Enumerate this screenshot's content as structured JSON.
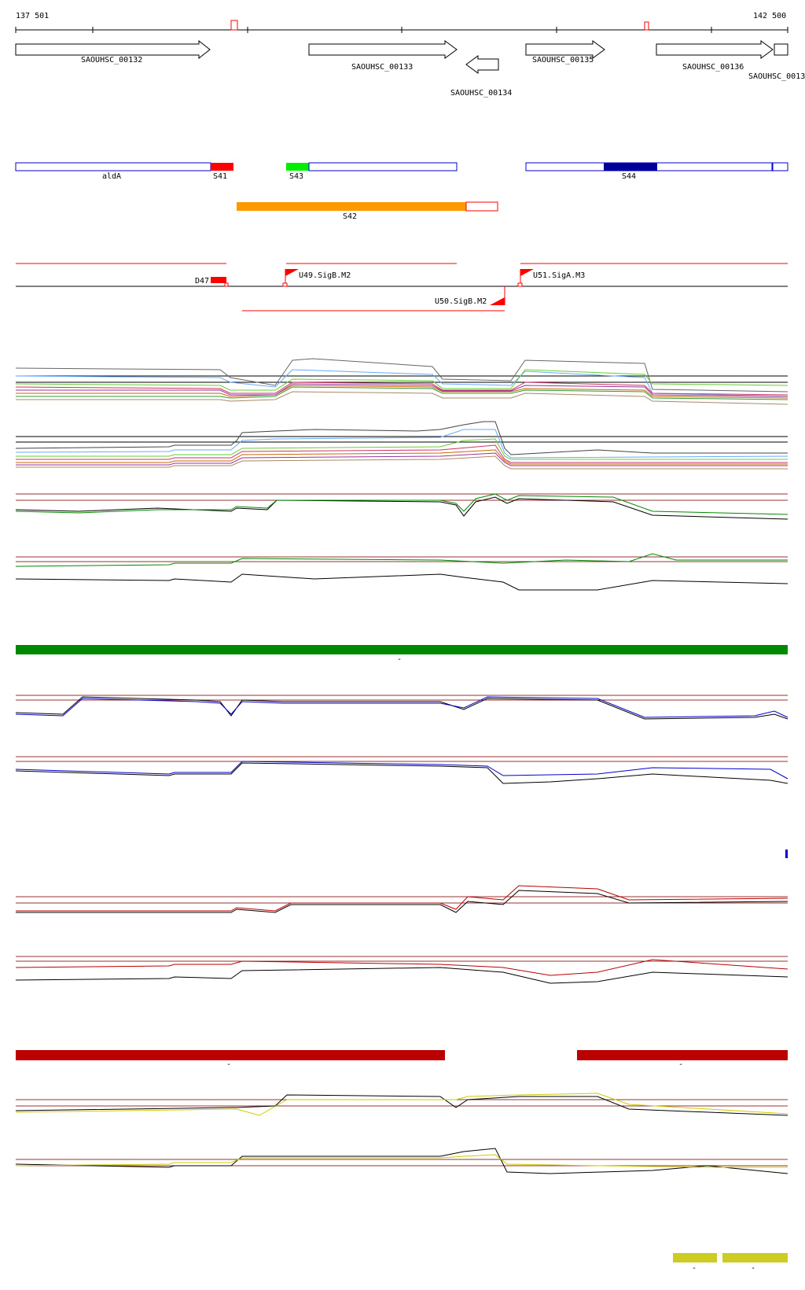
{
  "ruler": {
    "start_label": "137 501",
    "end_label": "142 500"
  },
  "genes": [
    {
      "id": "SAOUHSC_00132",
      "strand": "+"
    },
    {
      "id": "SAOUHSC_00133",
      "strand": "+"
    },
    {
      "id": "SAOUHSC_00134",
      "strand": "-"
    },
    {
      "id": "SAOUHSC_00135",
      "strand": "+"
    },
    {
      "id": "SAOUHSC_00136",
      "strand": "+"
    },
    {
      "id": "SAOUHSC_0013",
      "strand": "+"
    }
  ],
  "segments": {
    "aldA": "aldA",
    "S41": "S41",
    "S43": "S43",
    "S44": "S44",
    "S42": "S42"
  },
  "promoters": {
    "D47": "D47",
    "U49": "U49.SigB.M2",
    "U50": "U50.SigB.M2",
    "U51": "U51.SigA.M3"
  },
  "bar_labels": {
    "green": "-",
    "red_left": "-",
    "red_right": "-",
    "yellow_left": "-",
    "yellow_right": "-"
  },
  "colors": {
    "gene_outline": "#000000",
    "segment_outline": "#0000cc",
    "S41": "#ff0000",
    "S43": "#00ee00",
    "S44": "#000099",
    "S42": "#ff9900",
    "promoter": "#ff0000",
    "green_track": "#008800",
    "blue_track": "#0000cc",
    "red_track": "#bb0000",
    "yellow_track": "#cccc00",
    "threshold": "#993333"
  }
}
